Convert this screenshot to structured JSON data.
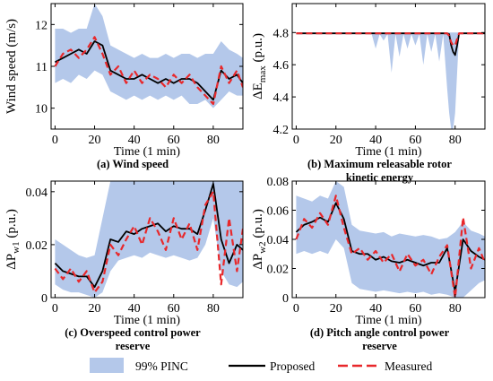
{
  "colors": {
    "band": "#b4c8ea",
    "proposed": "#000000",
    "measured": "#e8282b"
  },
  "legend": {
    "band": "99% PINC",
    "proposed": "Proposed",
    "measured": "Measured"
  },
  "chart_data": [
    {
      "id": "a",
      "type": "line",
      "caption": "(a) Wind speed",
      "caption2": "",
      "xlabel": "Time (1 min)",
      "ylabel": "Wind speed (m/s)",
      "ylabel_main": "Wind speed (m/s)",
      "ylabel_sub": "",
      "ylabel_tail": "",
      "xlim": [
        -2,
        95
      ],
      "ylim": [
        9.5,
        12.5
      ],
      "xticks": [
        0,
        20,
        40,
        60,
        80
      ],
      "yticks": [
        10,
        11,
        12
      ],
      "ytick_labels": [
        "10",
        "11",
        "12"
      ],
      "x": [
        0,
        4,
        8,
        12,
        16,
        20,
        24,
        28,
        32,
        36,
        40,
        44,
        48,
        52,
        56,
        60,
        64,
        68,
        72,
        76,
        80,
        84,
        88,
        92,
        95
      ],
      "series": [
        {
          "name": "99% PINC lower",
          "values": [
            10.6,
            10.7,
            10.6,
            10.8,
            10.7,
            10.9,
            10.8,
            10.4,
            10.3,
            10.2,
            10.3,
            10.2,
            10.3,
            10.2,
            10.3,
            10.2,
            10.3,
            10.1,
            10.1,
            10.2,
            10.0,
            10.2,
            10.4,
            10.3,
            10.3
          ]
        },
        {
          "name": "99% PINC upper",
          "values": [
            11.9,
            11.9,
            11.8,
            11.9,
            11.9,
            12.5,
            12.2,
            11.5,
            11.4,
            11.3,
            11.2,
            11.3,
            11.2,
            11.2,
            11.3,
            11.2,
            11.3,
            11.3,
            11.2,
            11.3,
            11.3,
            11.6,
            11.4,
            11.3,
            11.2
          ]
        },
        {
          "name": "Proposed",
          "values": [
            11.1,
            11.2,
            11.3,
            11.4,
            11.3,
            11.6,
            11.5,
            10.9,
            10.8,
            10.7,
            10.7,
            10.8,
            10.7,
            10.6,
            10.7,
            10.6,
            10.7,
            10.7,
            10.6,
            10.4,
            10.2,
            10.9,
            10.7,
            10.8,
            10.6
          ]
        },
        {
          "name": "Measured",
          "values": [
            11.0,
            11.3,
            11.4,
            11.2,
            11.4,
            11.7,
            11.3,
            10.8,
            11.0,
            10.6,
            10.9,
            10.6,
            10.8,
            10.7,
            10.5,
            10.8,
            10.6,
            10.8,
            10.5,
            10.3,
            10.1,
            11.0,
            10.6,
            10.9,
            10.5
          ]
        }
      ]
    },
    {
      "id": "b",
      "type": "line",
      "caption": "(b) Maximum releasable rotor",
      "caption2": "kinetic energy",
      "xlabel": "Time (1 min)",
      "ylabel": "ΔEmax (p.u.)",
      "ylabel_main": "ΔE",
      "ylabel_sub": "max",
      "ylabel_tail": " (p.u.)",
      "xlim": [
        -2,
        95
      ],
      "ylim": [
        4.2,
        4.98
      ],
      "xticks": [
        0,
        20,
        40,
        60,
        80
      ],
      "yticks": [
        4.2,
        4.4,
        4.6,
        4.8
      ],
      "ytick_labels": [
        "4.2",
        "4.4",
        "4.6",
        "4.8"
      ],
      "x": [
        0,
        10,
        20,
        30,
        38,
        40,
        42,
        44,
        46,
        48,
        50,
        52,
        54,
        56,
        58,
        60,
        62,
        64,
        66,
        68,
        70,
        72,
        74,
        76,
        77,
        78,
        79,
        80,
        81,
        82,
        84,
        88,
        92,
        95
      ],
      "series": [
        {
          "name": "99% PINC lower",
          "values": [
            4.79,
            4.79,
            4.79,
            4.79,
            4.79,
            4.7,
            4.79,
            4.75,
            4.79,
            4.55,
            4.79,
            4.65,
            4.79,
            4.7,
            4.79,
            4.72,
            4.79,
            4.6,
            4.79,
            4.68,
            4.79,
            4.62,
            4.79,
            4.45,
            4.3,
            4.2,
            4.2,
            4.3,
            4.55,
            4.79,
            4.79,
            4.79,
            4.79,
            4.79
          ]
        },
        {
          "name": "99% PINC upper",
          "values": [
            4.8,
            4.8,
            4.8,
            4.8,
            4.8,
            4.8,
            4.8,
            4.8,
            4.8,
            4.8,
            4.8,
            4.8,
            4.8,
            4.8,
            4.8,
            4.8,
            4.8,
            4.8,
            4.8,
            4.8,
            4.8,
            4.8,
            4.8,
            4.8,
            4.8,
            4.8,
            4.8,
            4.8,
            4.8,
            4.8,
            4.8,
            4.8,
            4.8,
            4.8
          ]
        },
        {
          "name": "Proposed",
          "values": [
            4.795,
            4.795,
            4.795,
            4.795,
            4.795,
            4.795,
            4.795,
            4.795,
            4.795,
            4.795,
            4.795,
            4.795,
            4.795,
            4.795,
            4.795,
            4.795,
            4.795,
            4.795,
            4.795,
            4.795,
            4.795,
            4.795,
            4.795,
            4.795,
            4.79,
            4.72,
            4.68,
            4.66,
            4.72,
            4.795,
            4.795,
            4.795,
            4.795,
            4.795
          ]
        },
        {
          "name": "Measured",
          "values": [
            4.795,
            4.795,
            4.795,
            4.795,
            4.795,
            4.795,
            4.795,
            4.795,
            4.795,
            4.795,
            4.795,
            4.795,
            4.795,
            4.795,
            4.795,
            4.795,
            4.795,
            4.795,
            4.795,
            4.795,
            4.795,
            4.795,
            4.795,
            4.795,
            4.78,
            4.74,
            4.72,
            4.72,
            4.76,
            4.795,
            4.795,
            4.795,
            4.795,
            4.795
          ]
        }
      ]
    },
    {
      "id": "c",
      "type": "line",
      "caption": "(c) Overspeed control power",
      "caption2": "reserve",
      "xlabel": "Time (1 min)",
      "ylabel": "ΔPw1 (p.u.)",
      "ylabel_main": "ΔP",
      "ylabel_sub": "w1",
      "ylabel_tail": " (p.u.)",
      "xlim": [
        -2,
        95
      ],
      "ylim": [
        0,
        0.044
      ],
      "xticks": [
        0,
        20,
        40,
        60,
        80
      ],
      "yticks": [
        0,
        0.02,
        0.04
      ],
      "ytick_labels": [
        "0",
        "0.02",
        "0.04"
      ],
      "x": [
        0,
        4,
        8,
        12,
        16,
        20,
        24,
        28,
        32,
        36,
        40,
        44,
        48,
        52,
        56,
        60,
        64,
        68,
        72,
        76,
        80,
        84,
        88,
        92,
        95
      ],
      "series": [
        {
          "name": "99% PINC lower",
          "values": [
            0.005,
            0.003,
            0.002,
            0.002,
            0.001,
            0.0,
            0.002,
            0.01,
            0.014,
            0.015,
            0.016,
            0.015,
            0.017,
            0.016,
            0.015,
            0.016,
            0.015,
            0.014,
            0.015,
            0.02,
            0.03,
            0.01,
            0.005,
            0.004,
            0.006
          ]
        },
        {
          "name": "99% PINC upper",
          "values": [
            0.022,
            0.02,
            0.018,
            0.016,
            0.015,
            0.016,
            0.03,
            0.044,
            0.044,
            0.044,
            0.044,
            0.044,
            0.044,
            0.044,
            0.044,
            0.044,
            0.044,
            0.044,
            0.044,
            0.044,
            0.044,
            0.044,
            0.044,
            0.044,
            0.044
          ]
        },
        {
          "name": "Proposed",
          "values": [
            0.013,
            0.01,
            0.009,
            0.008,
            0.008,
            0.004,
            0.01,
            0.022,
            0.021,
            0.025,
            0.024,
            0.026,
            0.027,
            0.028,
            0.025,
            0.027,
            0.026,
            0.026,
            0.024,
            0.033,
            0.043,
            0.022,
            0.013,
            0.02,
            0.018
          ]
        },
        {
          "name": "Measured",
          "values": [
            0.011,
            0.007,
            0.011,
            0.006,
            0.01,
            0.002,
            0.006,
            0.02,
            0.016,
            0.022,
            0.027,
            0.02,
            0.03,
            0.025,
            0.018,
            0.03,
            0.022,
            0.028,
            0.018,
            0.035,
            0.04,
            0.005,
            0.03,
            0.01,
            0.026
          ]
        }
      ]
    },
    {
      "id": "d",
      "type": "line",
      "caption": "(d) Pitch angle control power",
      "caption2": "reserve",
      "xlabel": "Time (1 min)",
      "ylabel": "ΔPw2 (p.u.)",
      "ylabel_main": "ΔP",
      "ylabel_sub": "w2",
      "ylabel_tail": " (p.u.)",
      "xlim": [
        -2,
        95
      ],
      "ylim": [
        0,
        0.08
      ],
      "xticks": [
        0,
        20,
        40,
        60,
        80
      ],
      "yticks": [
        0,
        0.02,
        0.04,
        0.06,
        0.08
      ],
      "ytick_labels": [
        "0",
        "0.02",
        "0.04",
        "0.06",
        "0.08"
      ],
      "x": [
        0,
        4,
        8,
        12,
        16,
        20,
        24,
        28,
        32,
        36,
        40,
        44,
        48,
        52,
        56,
        60,
        64,
        68,
        72,
        76,
        80,
        84,
        88,
        92,
        95
      ],
      "series": [
        {
          "name": "99% PINC lower",
          "values": [
            0.03,
            0.032,
            0.03,
            0.032,
            0.03,
            0.04,
            0.034,
            0.01,
            0.006,
            0.005,
            0.004,
            0.005,
            0.004,
            0.003,
            0.004,
            0.003,
            0.004,
            0.002,
            0.003,
            0.002,
            0.0,
            0.0,
            0.005,
            0.01,
            0.012
          ]
        },
        {
          "name": "99% PINC upper",
          "values": [
            0.07,
            0.068,
            0.066,
            0.07,
            0.068,
            0.08,
            0.076,
            0.05,
            0.046,
            0.045,
            0.044,
            0.045,
            0.042,
            0.044,
            0.043,
            0.042,
            0.043,
            0.042,
            0.04,
            0.041,
            0.045,
            0.052,
            0.046,
            0.044,
            0.042
          ]
        },
        {
          "name": "Proposed",
          "values": [
            0.045,
            0.05,
            0.052,
            0.055,
            0.052,
            0.065,
            0.054,
            0.032,
            0.03,
            0.03,
            0.026,
            0.028,
            0.025,
            0.024,
            0.026,
            0.024,
            0.022,
            0.024,
            0.024,
            0.034,
            0.004,
            0.04,
            0.032,
            0.028,
            0.026
          ]
        },
        {
          "name": "Measured",
          "values": [
            0.04,
            0.054,
            0.048,
            0.058,
            0.05,
            0.07,
            0.048,
            0.03,
            0.034,
            0.026,
            0.032,
            0.024,
            0.03,
            0.018,
            0.03,
            0.022,
            0.026,
            0.016,
            0.028,
            0.036,
            0.0,
            0.055,
            0.02,
            0.034,
            0.024
          ]
        }
      ]
    }
  ]
}
